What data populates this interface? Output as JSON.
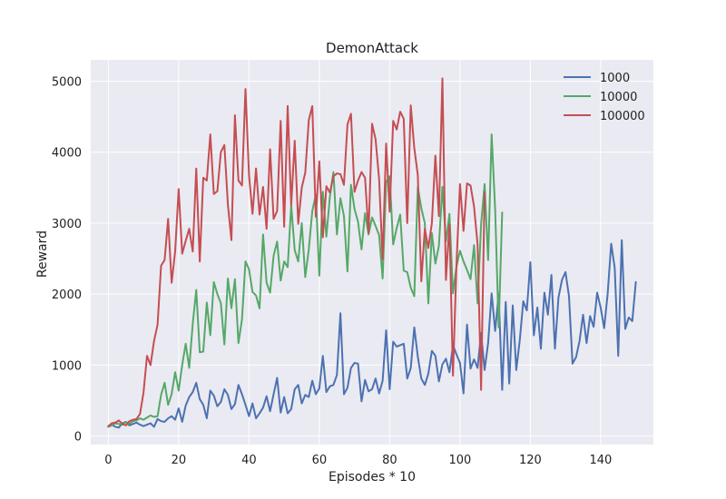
{
  "chart_data": {
    "type": "line",
    "title": "DemonAttack",
    "xlabel": "Episodes * 10",
    "ylabel": "Reward",
    "xlim": [
      -5,
      155
    ],
    "ylim": [
      -120,
      5300
    ],
    "xticks": [
      0,
      20,
      40,
      60,
      80,
      100,
      120,
      140
    ],
    "yticks": [
      0,
      1000,
      2000,
      3000,
      4000,
      5000
    ],
    "grid": true,
    "legend_position": "top-right",
    "background": "#eaeaf2",
    "series": [
      {
        "name": "1000",
        "color": "#4c72b0",
        "x": [
          0,
          1,
          2,
          3,
          4,
          5,
          6,
          7,
          8,
          9,
          10,
          11,
          12,
          13,
          14,
          15,
          16,
          17,
          18,
          19,
          20,
          21,
          22,
          23,
          24,
          25,
          26,
          27,
          28,
          29,
          30,
          31,
          32,
          33,
          34,
          35,
          36,
          37,
          38,
          39,
          40,
          41,
          42,
          43,
          44,
          45,
          46,
          47,
          48,
          49,
          50,
          51,
          52,
          53,
          54,
          55,
          56,
          57,
          58,
          59,
          60,
          61,
          62,
          63,
          64,
          65,
          66,
          67,
          68,
          69,
          70,
          71,
          72,
          73,
          74,
          75,
          76,
          77,
          78,
          79,
          80,
          81,
          82,
          83,
          84,
          85,
          86,
          87,
          88,
          89,
          90,
          91,
          92,
          93,
          94,
          95,
          96,
          97,
          98,
          99,
          100,
          101,
          102,
          103,
          104,
          105,
          106,
          107,
          108,
          109,
          110,
          111,
          112,
          113,
          114,
          115,
          116,
          117,
          118,
          119,
          120,
          121,
          122,
          123,
          124,
          125,
          126,
          127,
          128,
          129,
          130,
          131,
          132,
          133,
          134,
          135,
          136,
          137,
          138,
          139,
          140,
          141,
          142,
          143,
          144,
          145,
          146,
          147,
          148,
          149,
          150
        ],
        "y": [
          140,
          160,
          130,
          120,
          180,
          200,
          150,
          170,
          190,
          160,
          140,
          160,
          180,
          130,
          240,
          210,
          200,
          250,
          280,
          230,
          390,
          200,
          430,
          550,
          620,
          750,
          520,
          440,
          250,
          640,
          570,
          420,
          480,
          660,
          580,
          380,
          450,
          720,
          590,
          440,
          280,
          460,
          250,
          320,
          400,
          560,
          350,
          590,
          820,
          330,
          550,
          320,
          380,
          660,
          720,
          460,
          580,
          550,
          780,
          590,
          670,
          1130,
          620,
          700,
          720,
          860,
          1730,
          590,
          680,
          960,
          1030,
          1020,
          490,
          790,
          630,
          660,
          810,
          600,
          780,
          1490,
          660,
          1330,
          1260,
          1280,
          1300,
          810,
          960,
          1530,
          1120,
          810,
          720,
          880,
          1200,
          1130,
          770,
          1010,
          1090,
          900,
          1280,
          1150,
          1030,
          600,
          1570,
          950,
          1080,
          960,
          1450,
          930,
          1310,
          2010,
          1480,
          2000,
          650,
          1890,
          740,
          1840,
          930,
          1350,
          1900,
          1770,
          2450,
          1420,
          1810,
          1230,
          2020,
          1710,
          2270,
          1230,
          1950,
          2200,
          2310,
          1970,
          1020,
          1110,
          1340,
          1710,
          1310,
          1690,
          1540,
          2020,
          1810,
          1520,
          2010,
          2710,
          2370,
          1130,
          2760,
          1510,
          1670,
          1620,
          2170
        ]
      },
      {
        "name": "10000",
        "color": "#55a868",
        "x": [
          0,
          1,
          2,
          3,
          4,
          5,
          6,
          7,
          8,
          9,
          10,
          11,
          12,
          13,
          14,
          15,
          16,
          17,
          18,
          19,
          20,
          21,
          22,
          23,
          24,
          25,
          26,
          27,
          28,
          29,
          30,
          31,
          32,
          33,
          34,
          35,
          36,
          37,
          38,
          39,
          40,
          41,
          42,
          43,
          44,
          45,
          46,
          47,
          48,
          49,
          50,
          51,
          52,
          53,
          54,
          55,
          56,
          57,
          58,
          59,
          60,
          61,
          62,
          63,
          64,
          65,
          66,
          67,
          68,
          69,
          70,
          71,
          72,
          73,
          74,
          75,
          76,
          77,
          78,
          79,
          80,
          81,
          82,
          83,
          84,
          85,
          86,
          87,
          88,
          89,
          90,
          91,
          92,
          93,
          94,
          95,
          96,
          97,
          98,
          99,
          100,
          101,
          102,
          103,
          104,
          105,
          106,
          107,
          108,
          109,
          110,
          111,
          112
        ],
        "y": [
          130,
          150,
          180,
          170,
          160,
          200,
          170,
          210,
          220,
          250,
          230,
          260,
          290,
          270,
          280,
          580,
          750,
          440,
          590,
          900,
          640,
          1000,
          1300,
          960,
          1580,
          2060,
          1180,
          1190,
          1880,
          1420,
          2170,
          2000,
          1870,
          1290,
          2220,
          1800,
          2210,
          1310,
          1640,
          2460,
          2350,
          2030,
          1980,
          1800,
          2840,
          2160,
          2020,
          2540,
          2740,
          2190,
          2460,
          2380,
          3250,
          2620,
          2460,
          3000,
          2240,
          2630,
          3170,
          3400,
          2260,
          3440,
          2810,
          3370,
          3720,
          2840,
          3350,
          3100,
          2320,
          3540,
          3200,
          3020,
          2630,
          3140,
          2840,
          3080,
          2960,
          2830,
          2220,
          3580,
          3660,
          2700,
          2930,
          3120,
          2330,
          2310,
          2090,
          1970,
          3510,
          3210,
          3000,
          1870,
          2860,
          2430,
          2680,
          3510,
          2740,
          3130,
          2010,
          2390,
          2610,
          2460,
          2340,
          2210,
          2690,
          1870,
          2980,
          3550,
          2480,
          4250,
          3190,
          1530,
          3150
        ]
      },
      {
        "name": "100000",
        "color": "#c44e52",
        "x": [
          0,
          1,
          2,
          3,
          4,
          5,
          6,
          7,
          8,
          9,
          10,
          11,
          12,
          13,
          14,
          15,
          16,
          17,
          18,
          19,
          20,
          21,
          22,
          23,
          24,
          25,
          26,
          27,
          28,
          29,
          30,
          31,
          32,
          33,
          34,
          35,
          36,
          37,
          38,
          39,
          40,
          41,
          42,
          43,
          44,
          45,
          46,
          47,
          48,
          49,
          50,
          51,
          52,
          53,
          54,
          55,
          56,
          57,
          58,
          59,
          60,
          61,
          62,
          63,
          64,
          65,
          66,
          67,
          68,
          69,
          70,
          71,
          72,
          73,
          74,
          75,
          76,
          77,
          78,
          79,
          80,
          81,
          82,
          83,
          84,
          85,
          86,
          87,
          88,
          89,
          90,
          91,
          92,
          93,
          94,
          95,
          96,
          97,
          98,
          99,
          100,
          101,
          102,
          103,
          104,
          105,
          106,
          107
        ],
        "y": [
          140,
          180,
          190,
          220,
          170,
          150,
          210,
          230,
          240,
          310,
          610,
          1130,
          1000,
          1340,
          1570,
          2400,
          2480,
          3060,
          2160,
          2600,
          3480,
          2570,
          2750,
          2920,
          2600,
          3770,
          2460,
          3640,
          3600,
          4250,
          3410,
          3450,
          4000,
          4100,
          3260,
          2760,
          4520,
          3600,
          3530,
          4890,
          3680,
          3130,
          3770,
          3120,
          3510,
          2920,
          4040,
          3060,
          3170,
          4440,
          2950,
          4650,
          3250,
          4160,
          2990,
          3500,
          3710,
          4450,
          4650,
          3090,
          3870,
          2800,
          3520,
          3430,
          3660,
          3700,
          3690,
          3540,
          4390,
          4540,
          3440,
          3600,
          3720,
          3640,
          2860,
          4400,
          4180,
          3620,
          2490,
          4120,
          3160,
          4440,
          4320,
          4570,
          4470,
          3000,
          4660,
          4060,
          3680,
          2180,
          2920,
          2650,
          3000,
          3950,
          3100,
          5040,
          2200,
          2980,
          850,
          2410,
          3550,
          2890,
          3560,
          3530,
          3230,
          2700,
          650,
          3440
        ]
      }
    ]
  }
}
